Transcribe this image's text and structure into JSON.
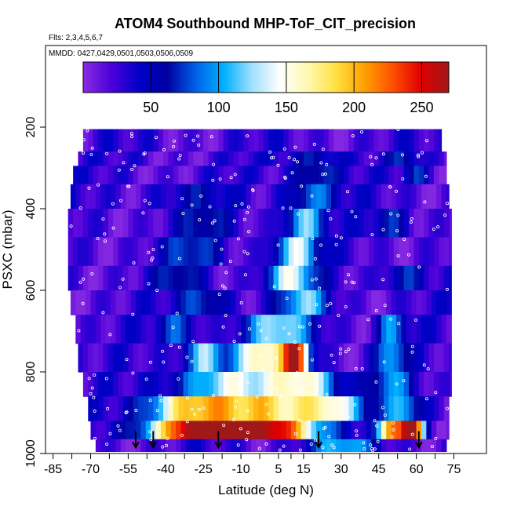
{
  "chart_data": {
    "type": "heatmap",
    "title": "ATOM4 Southbound MHP-ToF_CIT_precision",
    "flights_label": "Flts: 2,3,4,5,6,7",
    "dates_label": "MMDD: 0427,0429,0501,0503,0506,0509",
    "xlabel": "Latitude (deg N)",
    "ylabel": "PSXC (mbar)",
    "xlim": [
      -88,
      88
    ],
    "ylim": [
      1000,
      0
    ],
    "x_ticks": [
      -85,
      -70,
      -55,
      -40,
      -25,
      -10,
      5,
      15,
      30,
      45,
      60,
      75
    ],
    "x_tick_labels": [
      "-85",
      "-70",
      "-55",
      "-40",
      "-25",
      "-10",
      "5",
      "15",
      "30",
      "45",
      "60",
      "75"
    ],
    "y_ticks": [
      200,
      400,
      600,
      800,
      1000
    ],
    "y_tick_labels": [
      "200",
      "400",
      "600",
      "800",
      "1000"
    ],
    "colorbar": {
      "range": [
        0,
        270
      ],
      "ticks": [
        50,
        100,
        150,
        200,
        250
      ],
      "tick_labels": [
        "50",
        "100",
        "150",
        "200",
        "250"
      ],
      "colors": [
        "#8a2be2",
        "#4b00d9",
        "#0000c8",
        "#0000a0",
        "#0060e8",
        "#00b0ff",
        "#a0e0ff",
        "#ffffff",
        "#fff8b0",
        "#ffe040",
        "#ffa000",
        "#ff5000",
        "#e00000",
        "#a01818"
      ]
    },
    "launch_latitudes": [
      -52,
      -45,
      -19,
      21,
      61
    ],
    "layers": [
      {
        "p_top": 205,
        "p_bot": 260,
        "lat_start": -73,
        "lat_end": 70,
        "peaks": []
      },
      {
        "p_top": 260,
        "p_bot": 295,
        "lat_start": -75,
        "lat_end": 72,
        "peaks": [
          {
            "lat": 20,
            "v": 45,
            "w": 12
          },
          {
            "lat": 55,
            "v": 40,
            "w": 6
          }
        ]
      },
      {
        "p_top": 295,
        "p_bot": 340,
        "lat_start": -77,
        "lat_end": 72,
        "peaks": [
          {
            "lat": 20,
            "v": 60,
            "w": 10
          },
          {
            "lat": 60,
            "v": 45,
            "w": 5
          }
        ]
      },
      {
        "p_top": 340,
        "p_bot": 400,
        "lat_start": -78,
        "lat_end": 73,
        "peaks": [
          {
            "lat": 18,
            "v": 70,
            "w": 10
          },
          {
            "lat": -30,
            "v": 30,
            "w": 15
          }
        ]
      },
      {
        "p_top": 400,
        "p_bot": 470,
        "lat_start": -79,
        "lat_end": 74,
        "peaks": [
          {
            "lat": 15,
            "v": 95,
            "w": 8
          },
          {
            "lat": -25,
            "v": 40,
            "w": 12
          },
          {
            "lat": 50,
            "v": 45,
            "w": 8
          }
        ]
      },
      {
        "p_top": 470,
        "p_bot": 540,
        "lat_start": -79,
        "lat_end": 74,
        "peaks": [
          {
            "lat": 12,
            "v": 110,
            "w": 9
          },
          {
            "lat": -30,
            "v": 50,
            "w": 12
          }
        ]
      },
      {
        "p_top": 540,
        "p_bot": 600,
        "lat_start": -79,
        "lat_end": 74,
        "peaks": [
          {
            "lat": 10,
            "v": 115,
            "w": 10
          },
          {
            "lat": -35,
            "v": 45,
            "w": 10
          },
          {
            "lat": 55,
            "v": 50,
            "w": 8
          }
        ]
      },
      {
        "p_top": 600,
        "p_bot": 660,
        "lat_start": -78,
        "lat_end": 74,
        "peaks": [
          {
            "lat": 15,
            "v": 90,
            "w": 10
          },
          {
            "lat": -25,
            "v": 60,
            "w": 10
          }
        ]
      },
      {
        "p_top": 660,
        "p_bot": 730,
        "lat_start": -76,
        "lat_end": 74,
        "peaks": [
          {
            "lat": 5,
            "v": 100,
            "w": 14
          },
          {
            "lat": 50,
            "v": 70,
            "w": 6
          },
          {
            "lat": -35,
            "v": 55,
            "w": 8
          }
        ]
      },
      {
        "p_top": 730,
        "p_bot": 800,
        "lat_start": -75,
        "lat_end": 74,
        "peaks": [
          {
            "lat": 0,
            "v": 140,
            "w": 14
          },
          {
            "lat": 12,
            "v": 185,
            "w": 5
          },
          {
            "lat": -25,
            "v": 100,
            "w": 8
          },
          {
            "lat": 50,
            "v": 80,
            "w": 6
          }
        ]
      },
      {
        "p_top": 800,
        "p_bot": 860,
        "lat_start": -73,
        "lat_end": 74,
        "peaks": [
          {
            "lat": -15,
            "v": 110,
            "w": 22
          },
          {
            "lat": 15,
            "v": 130,
            "w": 14
          },
          {
            "lat": 50,
            "v": 70,
            "w": 8
          }
        ]
      },
      {
        "p_top": 860,
        "p_bot": 920,
        "lat_start": -71,
        "lat_end": 73,
        "peaks": [
          {
            "lat": -30,
            "v": 165,
            "w": 18
          },
          {
            "lat": 0,
            "v": 150,
            "w": 20
          },
          {
            "lat": 25,
            "v": 120,
            "w": 14
          },
          {
            "lat": 55,
            "v": 80,
            "w": 8
          }
        ]
      },
      {
        "p_top": 920,
        "p_bot": 965,
        "lat_start": -70,
        "lat_end": 73,
        "peaks": [
          {
            "lat": -25,
            "v": 270,
            "w": 22
          },
          {
            "lat": 5,
            "v": 200,
            "w": 18
          },
          {
            "lat": 58,
            "v": 260,
            "w": 5
          },
          {
            "lat": 50,
            "v": 180,
            "w": 5
          }
        ]
      },
      {
        "p_top": 965,
        "p_bot": 995,
        "lat_start": -68,
        "lat_end": 72,
        "peaks": [
          {
            "lat": 30,
            "v": 80,
            "w": 14
          }
        ]
      }
    ]
  }
}
